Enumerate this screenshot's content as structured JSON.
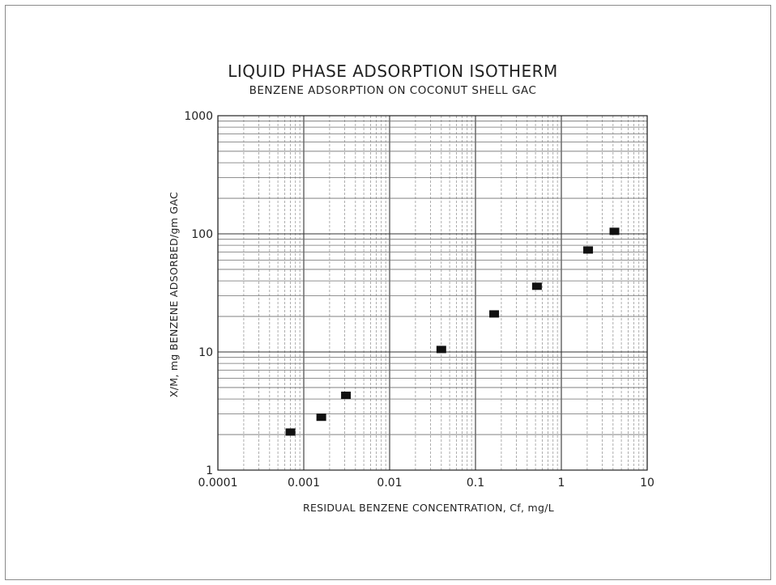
{
  "chart_data": {
    "type": "scatter",
    "title": "LIQUID PHASE ADSORPTION ISOTHERM",
    "subtitle": "BENZENE ADSORPTION ON COCONUT SHELL GAC",
    "xlabel": "RESIDUAL BENZENE CONCENTRATION, Cf, mg/L",
    "ylabel": "X/M, mg BENZENE ADSORBED/gm GAC",
    "x_scale": "log",
    "y_scale": "log",
    "xlim": [
      0.0001,
      10
    ],
    "ylim": [
      1,
      1000
    ],
    "x_ticks": [
      {
        "value": 0.0001,
        "label": "0.0001"
      },
      {
        "value": 0.001,
        "label": "0.001"
      },
      {
        "value": 0.01,
        "label": "0.01"
      },
      {
        "value": 0.1,
        "label": "0.1"
      },
      {
        "value": 1,
        "label": "1"
      },
      {
        "value": 10,
        "label": "10"
      }
    ],
    "y_ticks": [
      {
        "value": 1,
        "label": "1"
      },
      {
        "value": 10,
        "label": "10"
      },
      {
        "value": 100,
        "label": "100"
      },
      {
        "value": 1000,
        "label": "1000"
      }
    ],
    "grid": true,
    "marker": "square",
    "marker_color": "#111111",
    "x": [
      0.0007,
      0.0016,
      0.0031,
      0.04,
      0.165,
      0.52,
      2.05,
      4.15
    ],
    "y": [
      2.1,
      2.8,
      4.3,
      10.5,
      21,
      36,
      73,
      105
    ]
  }
}
